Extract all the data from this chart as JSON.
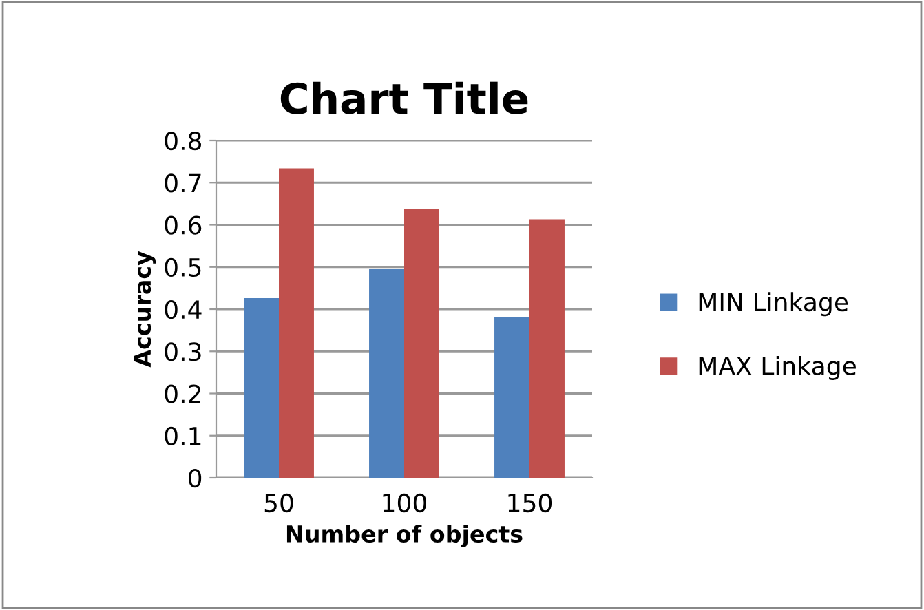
{
  "chart_data": {
    "type": "bar",
    "title": "Chart Title",
    "xlabel": "Number of objects",
    "ylabel": "Accuracy",
    "categories": [
      "50",
      "100",
      "150"
    ],
    "series": [
      {
        "name": "MIN Linkage",
        "color": "#4f81bd",
        "values": [
          0.426,
          0.495,
          0.381
        ]
      },
      {
        "name": "MAX Linkage",
        "color": "#c0504d",
        "values": [
          0.734,
          0.637,
          0.613
        ]
      }
    ],
    "ylim": [
      0,
      0.8
    ],
    "yticks": [
      {
        "value": 0,
        "label": "0"
      },
      0.1,
      0.2,
      0.3,
      0.4,
      0.5,
      0.6,
      0.7,
      0.8
    ],
    "grid": "y",
    "legend": "right"
  }
}
